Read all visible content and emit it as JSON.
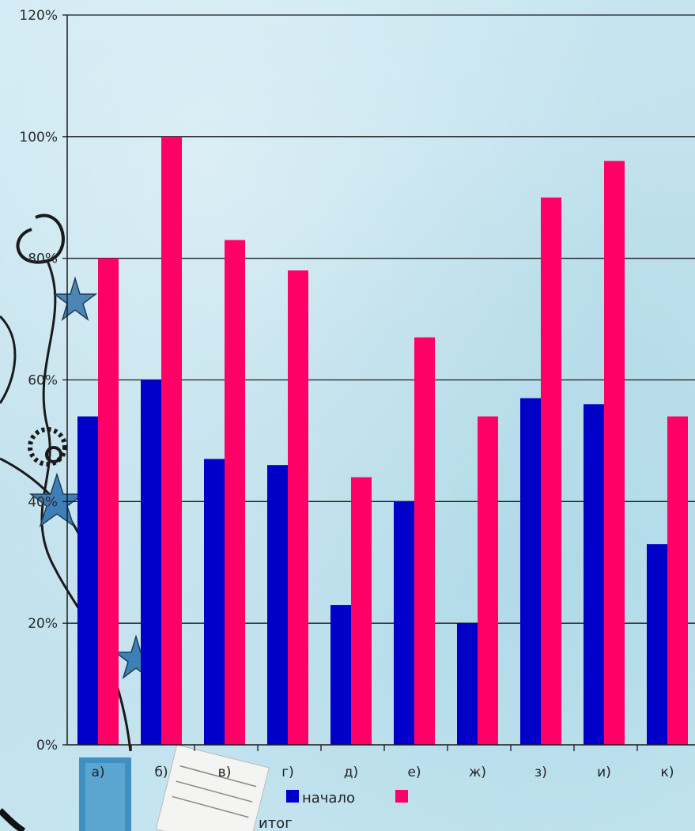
{
  "chart_data": {
    "type": "bar",
    "categories": [
      "а)",
      "б)",
      "в)",
      "г)",
      "д)",
      "е)",
      "ж)",
      "з)",
      "и)",
      "к)"
    ],
    "y_ticks": [
      "0%",
      "20%",
      "40%",
      "60%",
      "80%",
      "100%",
      "120%"
    ],
    "ylim": [
      0,
      120
    ],
    "y_unit": "%",
    "grid": true,
    "legend_position": "bottom",
    "series": [
      {
        "name": "начало",
        "color": "#0000c8",
        "values": [
          54,
          60,
          47,
          46,
          23,
          40,
          20,
          57,
          56,
          33
        ]
      },
      {
        "name": "итог",
        "color": "#ff0066",
        "values": [
          80,
          100,
          83,
          78,
          44,
          67,
          54,
          90,
          96,
          54
        ]
      }
    ]
  }
}
